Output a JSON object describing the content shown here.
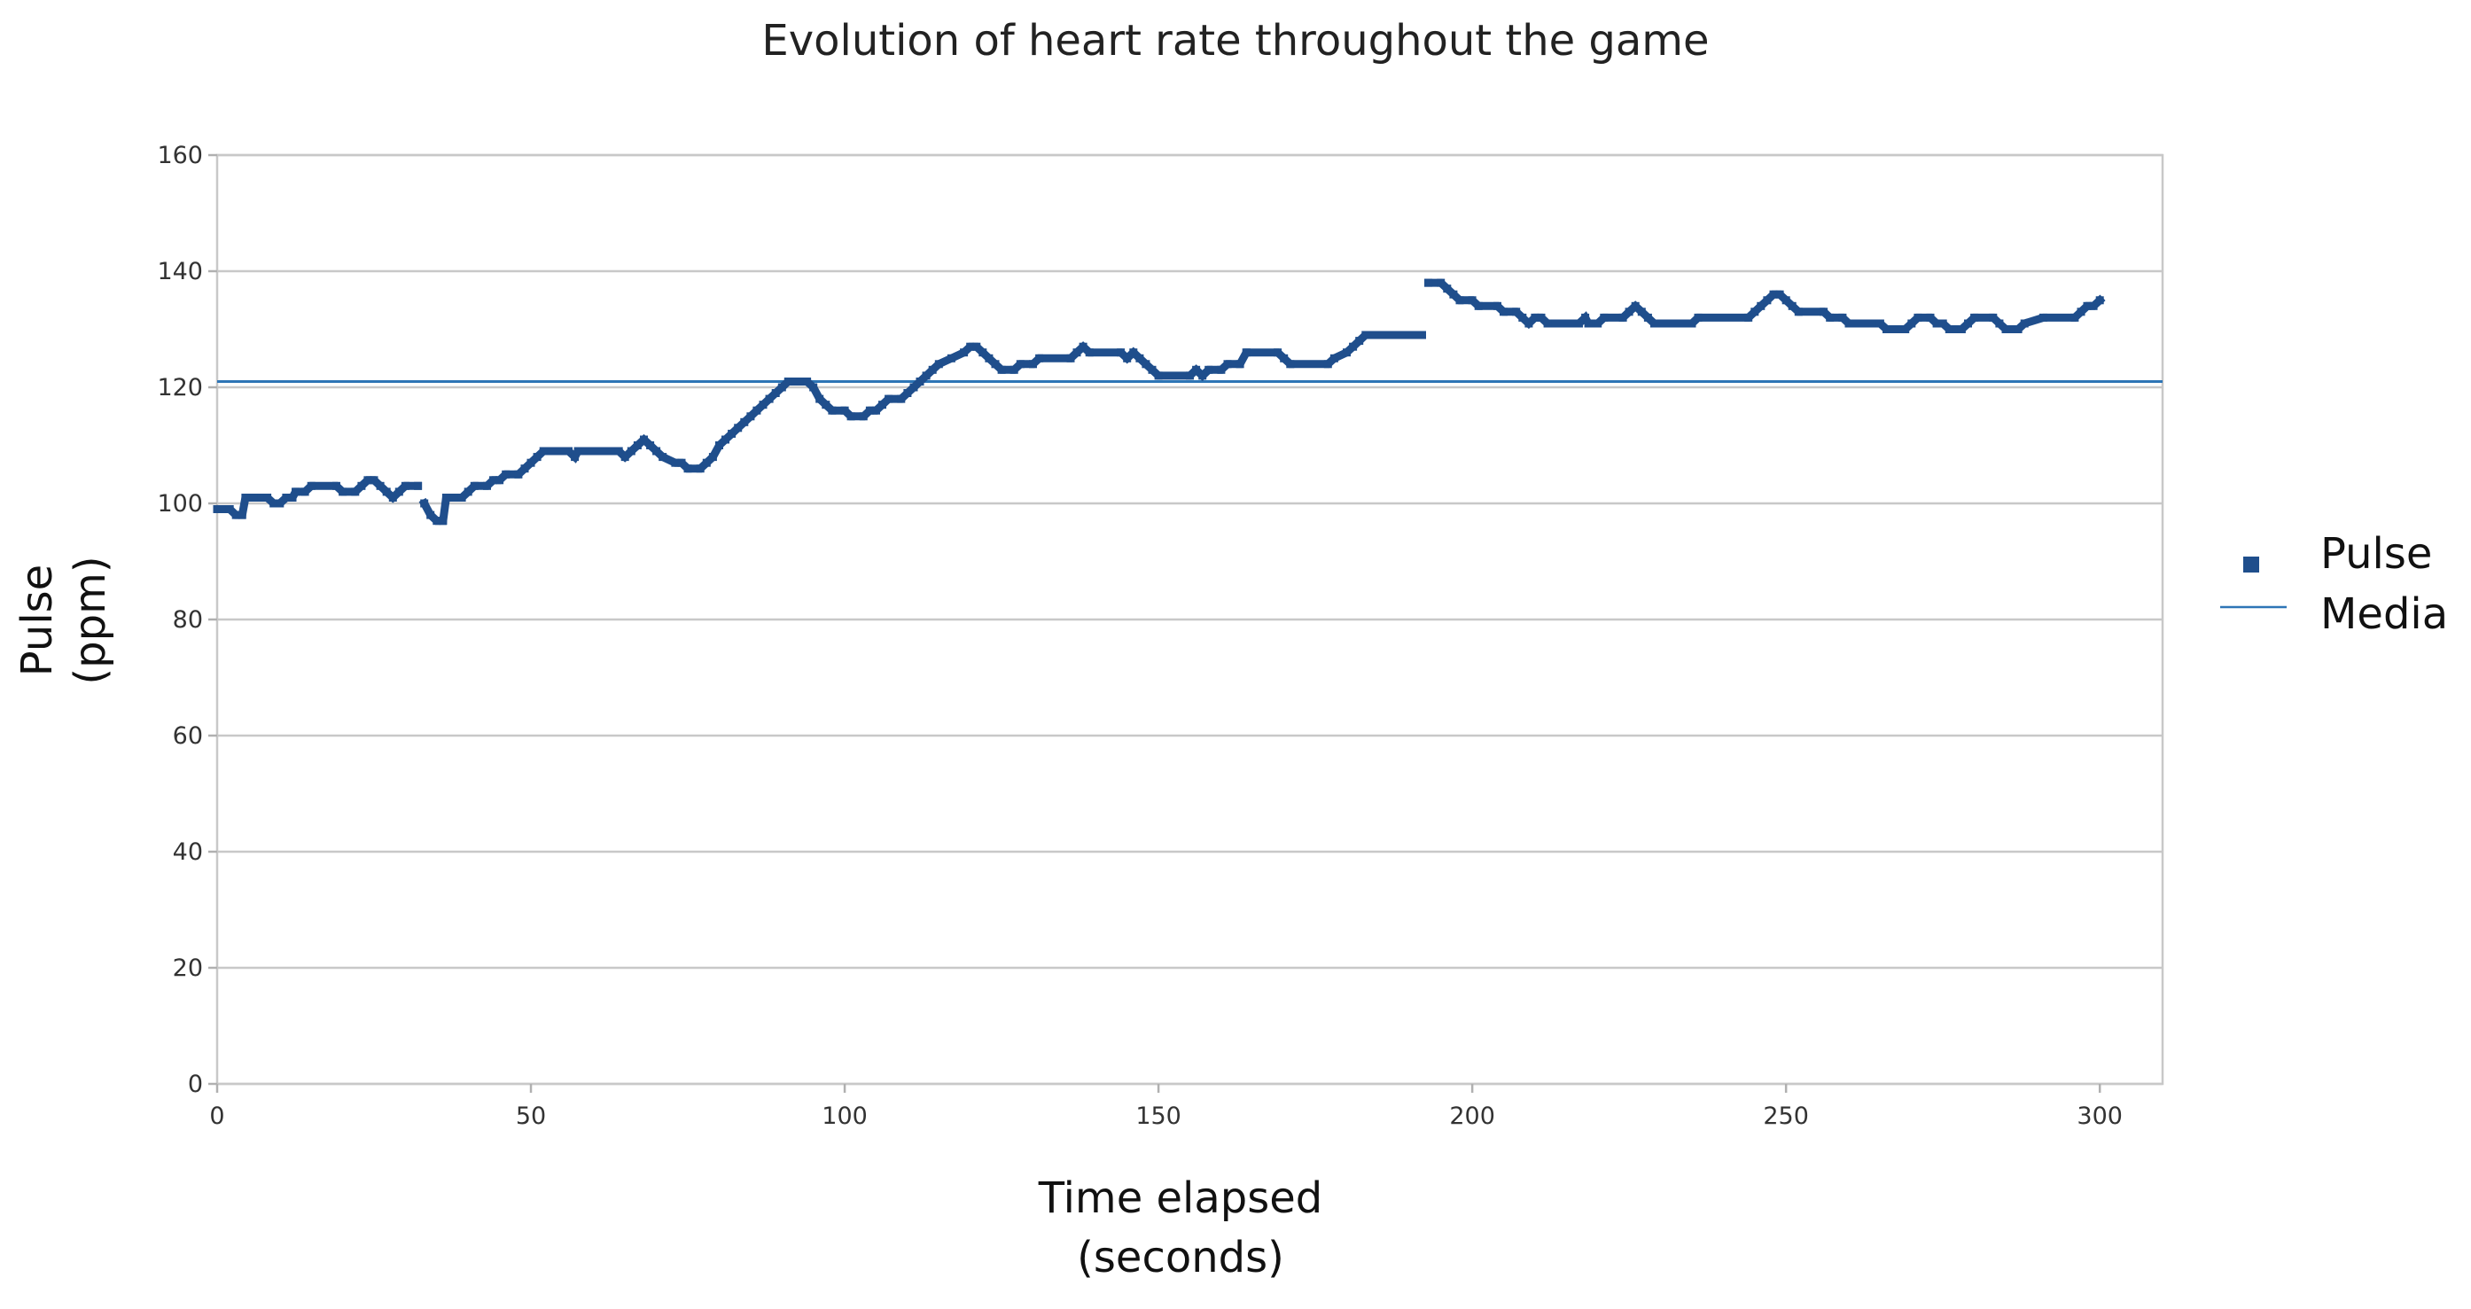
{
  "chart_data": {
    "type": "scatter",
    "title": "Evolution of heart rate throughout the game",
    "xlabel_lines": [
      "Time elapsed",
      "(seconds)"
    ],
    "ylabel_lines": [
      "Pulse",
      "(ppm)"
    ],
    "xlim": [
      0,
      310
    ],
    "ylim": [
      0,
      160
    ],
    "x_ticks": [
      0,
      50,
      100,
      150,
      200,
      250,
      300
    ],
    "y_ticks": [
      0,
      20,
      40,
      60,
      80,
      100,
      120,
      140,
      160
    ],
    "grid": true,
    "legend_position": "right",
    "colors": {
      "pulse": "#1f4e8c",
      "media": "#2e75b6",
      "grid": "#c8c8c8"
    },
    "series": [
      {
        "name": "Pulse",
        "kind": "markers",
        "legend_icon": "square-marker-icon",
        "segments": [
          [
            [
              0,
              99
            ],
            [
              2,
              99
            ],
            [
              3,
              98
            ],
            [
              4,
              98
            ],
            [
              4.5,
              101
            ],
            [
              7,
              101
            ],
            [
              8,
              101
            ],
            [
              9,
              100
            ],
            [
              10,
              100
            ],
            [
              11,
              101
            ],
            [
              12,
              101
            ],
            [
              12.5,
              102
            ],
            [
              14,
              102
            ],
            [
              15,
              103
            ],
            [
              19,
              103
            ],
            [
              20,
              102
            ],
            [
              22,
              102
            ],
            [
              23,
              103
            ],
            [
              24,
              104
            ],
            [
              25,
              104
            ],
            [
              26,
              103
            ],
            [
              27,
              102
            ],
            [
              28,
              101
            ],
            [
              29,
              102
            ],
            [
              30,
              103
            ],
            [
              32,
              103
            ]
          ],
          [
            [
              33,
              100
            ],
            [
              34,
              98
            ],
            [
              35,
              97
            ],
            [
              36,
              97
            ],
            [
              36.5,
              101
            ],
            [
              39,
              101
            ],
            [
              40,
              102
            ],
            [
              41,
              103
            ],
            [
              43,
              103
            ],
            [
              44,
              104
            ],
            [
              45,
              104
            ],
            [
              46,
              105
            ],
            [
              48,
              105
            ],
            [
              49,
              106
            ],
            [
              50,
              107
            ],
            [
              51,
              108
            ],
            [
              52,
              109
            ],
            [
              56,
              109
            ],
            [
              57,
              108
            ],
            [
              57.5,
              109
            ],
            [
              64,
              109
            ],
            [
              65,
              108
            ],
            [
              66,
              109
            ],
            [
              67,
              110
            ],
            [
              68,
              111
            ],
            [
              69,
              110
            ],
            [
              70,
              109
            ],
            [
              71,
              108
            ],
            [
              73,
              107
            ],
            [
              74,
              107
            ],
            [
              75,
              106
            ],
            [
              77,
              106
            ],
            [
              78,
              107
            ],
            [
              79,
              108
            ],
            [
              80,
              110
            ],
            [
              81,
              111
            ],
            [
              82,
              112
            ],
            [
              83,
              113
            ],
            [
              84,
              114
            ],
            [
              85,
              115
            ],
            [
              86,
              116
            ],
            [
              87,
              117
            ],
            [
              88,
              118
            ],
            [
              89,
              119
            ],
            [
              90,
              120
            ],
            [
              91,
              121
            ],
            [
              94,
              121
            ],
            [
              95,
              120
            ],
            [
              96,
              118
            ],
            [
              97,
              117
            ],
            [
              98,
              116
            ],
            [
              100,
              116
            ],
            [
              101,
              115
            ],
            [
              103,
              115
            ],
            [
              104,
              116
            ],
            [
              105,
              116
            ],
            [
              106,
              117
            ],
            [
              107,
              118
            ],
            [
              109,
              118
            ],
            [
              110,
              119
            ],
            [
              111,
              120
            ],
            [
              112,
              121
            ],
            [
              113,
              122
            ],
            [
              114,
              123
            ],
            [
              115,
              124
            ],
            [
              117,
              125
            ],
            [
              119,
              126
            ],
            [
              120,
              127
            ],
            [
              121,
              127
            ],
            [
              122,
              126
            ],
            [
              123,
              125
            ],
            [
              124,
              124
            ],
            [
              125,
              123
            ],
            [
              127,
              123
            ],
            [
              128,
              124
            ],
            [
              130,
              124
            ],
            [
              131,
              125
            ],
            [
              136,
              125
            ],
            [
              137,
              126
            ],
            [
              138,
              127
            ],
            [
              139,
              126
            ],
            [
              144,
              126
            ],
            [
              145,
              125
            ],
            [
              146,
              126
            ],
            [
              147,
              125
            ],
            [
              148,
              124
            ],
            [
              149,
              123
            ],
            [
              150,
              122
            ],
            [
              155,
              122
            ],
            [
              156,
              123
            ],
            [
              157,
              122
            ],
            [
              158,
              123
            ],
            [
              160,
              123
            ],
            [
              161,
              124
            ],
            [
              163,
              124
            ],
            [
              164,
              126
            ],
            [
              169,
              126
            ],
            [
              170,
              125
            ],
            [
              171,
              124
            ],
            [
              177,
              124
            ],
            [
              178,
              125
            ],
            [
              180,
              126
            ],
            [
              181,
              127
            ],
            [
              182,
              128
            ],
            [
              183,
              129
            ],
            [
              192,
              129
            ]
          ],
          [
            [
              193,
              138
            ],
            [
              195,
              138
            ],
            [
              196,
              137
            ],
            [
              197,
              136
            ],
            [
              198,
              135
            ],
            [
              200,
              135
            ],
            [
              201,
              134
            ],
            [
              204,
              134
            ],
            [
              205,
              133
            ],
            [
              207,
              133
            ],
            [
              208,
              132
            ],
            [
              209,
              131
            ],
            [
              210,
              132
            ],
            [
              211,
              132
            ],
            [
              212,
              131
            ],
            [
              217,
              131
            ],
            [
              218,
              132
            ],
            [
              218.5,
              131
            ],
            [
              220,
              131
            ],
            [
              221,
              132
            ],
            [
              224,
              132
            ],
            [
              225,
              133
            ],
            [
              226,
              134
            ],
            [
              227,
              133
            ],
            [
              228,
              132
            ],
            [
              229,
              131
            ],
            [
              235,
              131
            ],
            [
              236,
              132
            ],
            [
              244,
              132
            ],
            [
              245,
              133
            ],
            [
              246,
              134
            ],
            [
              247,
              135
            ],
            [
              248,
              136
            ],
            [
              249,
              136
            ],
            [
              250,
              135
            ],
            [
              251,
              134
            ],
            [
              252,
              133
            ],
            [
              256,
              133
            ],
            [
              257,
              132
            ],
            [
              259,
              132
            ],
            [
              260,
              131
            ],
            [
              265,
              131
            ],
            [
              266,
              130
            ],
            [
              269,
              130
            ],
            [
              270,
              131
            ],
            [
              271,
              132
            ],
            [
              273,
              132
            ],
            [
              274,
              131
            ],
            [
              275,
              131
            ],
            [
              276,
              130
            ],
            [
              278,
              130
            ],
            [
              279,
              131
            ],
            [
              280,
              132
            ],
            [
              283,
              132
            ],
            [
              284,
              131
            ],
            [
              285,
              130
            ],
            [
              287,
              130
            ],
            [
              288,
              131
            ],
            [
              291,
              132
            ],
            [
              296,
              132
            ],
            [
              297,
              133
            ],
            [
              298,
              134
            ],
            [
              299,
              134
            ],
            [
              300,
              135
            ]
          ]
        ]
      },
      {
        "name": "Media",
        "kind": "horizontal-line",
        "legend_icon": "line-marker-icon",
        "value": 121
      }
    ]
  }
}
